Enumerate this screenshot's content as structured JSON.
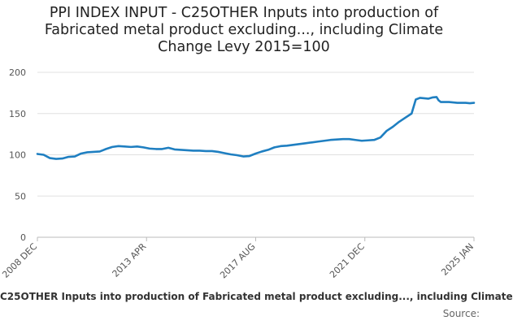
{
  "chart_data": {
    "type": "line",
    "title_lines": [
      "PPI INDEX INPUT - C25OTHER Inputs into production of",
      "Fabricated metal product excluding..., including Climate",
      "Change Levy 2015=100"
    ],
    "xlabel": "",
    "ylabel": "",
    "ylim": [
      0,
      200
    ],
    "y_ticks": [
      0,
      50,
      100,
      150,
      200
    ],
    "x_tick_labels": [
      "2008 DEC",
      "2013 APR",
      "2017 AUG",
      "2021 DEC",
      "2025 JAN"
    ],
    "grid": true,
    "series": [
      {
        "name": "C25OTHER Inputs into production of Fabricated metal product excluding..., including Climate",
        "color": "#1f7fc1",
        "points": [
          [
            "2008-12",
            101
          ],
          [
            "2009-03",
            100
          ],
          [
            "2009-06",
            96
          ],
          [
            "2009-09",
            95
          ],
          [
            "2009-12",
            95.5
          ],
          [
            "2010-03",
            97.5
          ],
          [
            "2010-06",
            98
          ],
          [
            "2010-09",
            101.5
          ],
          [
            "2010-12",
            103
          ],
          [
            "2011-03",
            103.5
          ],
          [
            "2011-06",
            104
          ],
          [
            "2011-09",
            107
          ],
          [
            "2011-12",
            109.5
          ],
          [
            "2012-03",
            110.5
          ],
          [
            "2012-06",
            110
          ],
          [
            "2012-09",
            109.5
          ],
          [
            "2012-12",
            110
          ],
          [
            "2013-03",
            109
          ],
          [
            "2013-06",
            107.5
          ],
          [
            "2013-09",
            107
          ],
          [
            "2013-12",
            107
          ],
          [
            "2014-03",
            108.5
          ],
          [
            "2014-06",
            106.5
          ],
          [
            "2014-09",
            106
          ],
          [
            "2014-12",
            105.5
          ],
          [
            "2015-03",
            105
          ],
          [
            "2015-06",
            105
          ],
          [
            "2015-09",
            104.5
          ],
          [
            "2015-12",
            104.5
          ],
          [
            "2016-03",
            103.5
          ],
          [
            "2016-06",
            102
          ],
          [
            "2016-09",
            100.5
          ],
          [
            "2016-12",
            99.5
          ],
          [
            "2017-03",
            98
          ],
          [
            "2017-06",
            98.5
          ],
          [
            "2017-09",
            101.5
          ],
          [
            "2017-12",
            104
          ],
          [
            "2018-03",
            106
          ],
          [
            "2018-06",
            109
          ],
          [
            "2018-09",
            110.5
          ],
          [
            "2018-12",
            111
          ],
          [
            "2019-03",
            112
          ],
          [
            "2019-06",
            113
          ],
          [
            "2019-09",
            114
          ],
          [
            "2019-12",
            115
          ],
          [
            "2020-03",
            116
          ],
          [
            "2020-06",
            117
          ],
          [
            "2020-09",
            118
          ],
          [
            "2020-12",
            118.5
          ],
          [
            "2021-03",
            119
          ],
          [
            "2021-06",
            119
          ],
          [
            "2021-09",
            118
          ],
          [
            "2021-12",
            117
          ],
          [
            "2022-03",
            117.5
          ],
          [
            "2022-06",
            118
          ],
          [
            "2022-09",
            121
          ],
          [
            "2022-12",
            129
          ],
          [
            "2023-03",
            134
          ],
          [
            "2023-06",
            140
          ],
          [
            "2023-09",
            145
          ],
          [
            "2023-12",
            150
          ],
          [
            "2024-02",
            167
          ],
          [
            "2024-04",
            169
          ],
          [
            "2024-06",
            168.5
          ],
          [
            "2024-08",
            168
          ],
          [
            "2024-10",
            169.5
          ],
          [
            "2024-12",
            170
          ],
          [
            "2025-01",
            166
          ],
          [
            "2025-02",
            164
          ],
          [
            "2025-04",
            164
          ],
          [
            "2025-06",
            164
          ],
          [
            "2025-08",
            163.5
          ],
          [
            "2025-10",
            163
          ],
          [
            "2025-12",
            163
          ],
          [
            "2026-02",
            163
          ],
          [
            "2026-04",
            162.5
          ],
          [
            "2026-06",
            163
          ]
        ]
      }
    ],
    "legend_text": "C25OTHER Inputs into production of Fabricated metal product excluding..., including Climate",
    "source_label": "Source:"
  }
}
